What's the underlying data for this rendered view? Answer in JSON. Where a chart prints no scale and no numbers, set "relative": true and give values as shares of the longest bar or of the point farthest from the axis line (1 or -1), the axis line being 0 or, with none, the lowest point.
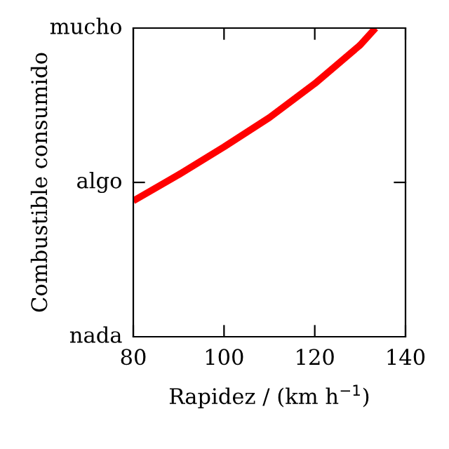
{
  "chart_data": {
    "type": "line",
    "relative": true,
    "xlabel": "Rapidez / (km h$^{−1}$)",
    "ylabel": "Combustible consumido",
    "annotations": [
      "nada",
      "algo",
      "mucho"
    ],
    "x": [
      80,
      90,
      100,
      110,
      120,
      130,
      133.4
    ],
    "series": [
      {
        "color": "#ff0000",
        "values": [
          0.44,
          0.525,
          0.615,
          0.71,
          0.82,
          0.945,
          1.0
        ]
      }
    ],
    "xlim": [
      80,
      140
    ],
    "xticks": [
      80,
      100,
      120,
      140
    ],
    "grid": false,
    "legend": false,
    "line_style": "solid",
    "marker": "none"
  }
}
